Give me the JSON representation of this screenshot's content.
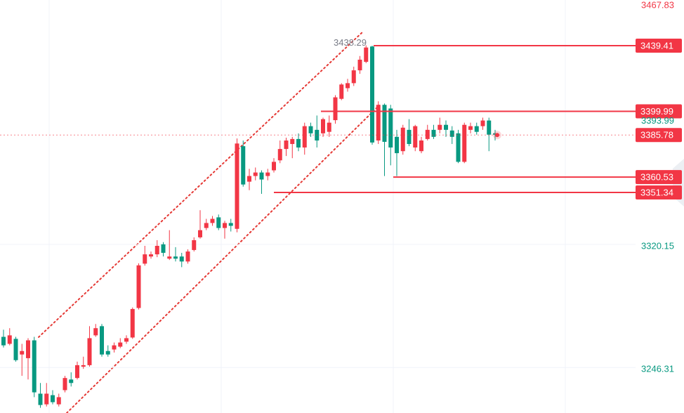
{
  "chart_data": {
    "type": "candlestick",
    "ylim": [
      3219.0,
      3466.8
    ],
    "yticks": [
      3320.15,
      3246.31
    ],
    "ytick_color": "#089981",
    "grid": true,
    "up_color": "#f23645",
    "down_color": "#089981",
    "high_label": 3438.29,
    "last_price": {
      "value": 3385.78,
      "color": "#f23645"
    },
    "price_tags": [
      {
        "value": 3467.83,
        "style": "text",
        "color": "#f23645"
      },
      {
        "value": 3439.41,
        "style": "box",
        "color": "#f23645"
      },
      {
        "value": 3399.99,
        "style": "box",
        "color": "#f23645"
      },
      {
        "value": 3393.99,
        "style": "text",
        "color": "#089981"
      },
      {
        "value": 3360.53,
        "style": "box",
        "color": "#f23645"
      },
      {
        "value": 3351.34,
        "style": "box",
        "color": "#f23645"
      }
    ],
    "ohlc": [
      [
        3264.7,
        3269.0,
        3258.3,
        3259.6
      ],
      [
        3260.5,
        3269.9,
        3259.6,
        3265.6
      ],
      [
        3263.5,
        3264.7,
        3249.8,
        3250.7
      ],
      [
        3254.1,
        3260.5,
        3241.3,
        3256.2
      ],
      [
        3251.9,
        3263.9,
        3239.1,
        3262.6
      ],
      [
        3262.6,
        3264.7,
        3228.5,
        3231.4
      ],
      [
        3230.6,
        3237.0,
        3222.1,
        3223.8
      ],
      [
        3224.2,
        3237.0,
        3222.9,
        3230.6
      ],
      [
        3229.7,
        3232.7,
        3224.2,
        3225.5
      ],
      [
        3224.2,
        3230.6,
        3222.9,
        3228.5
      ],
      [
        3232.7,
        3241.3,
        3231.4,
        3240.0
      ],
      [
        3239.1,
        3243.4,
        3234.9,
        3237.0
      ],
      [
        3240.0,
        3249.8,
        3239.1,
        3247.7
      ],
      [
        3246.8,
        3252.8,
        3245.5,
        3247.7
      ],
      [
        3247.7,
        3271.1,
        3246.8,
        3263.9
      ],
      [
        3265.6,
        3272.4,
        3264.7,
        3269.9
      ],
      [
        3271.1,
        3272.4,
        3252.8,
        3254.1
      ],
      [
        3256.2,
        3259.6,
        3252.8,
        3254.1
      ],
      [
        3257.1,
        3261.3,
        3255.3,
        3259.6
      ],
      [
        3258.8,
        3263.9,
        3257.9,
        3261.3
      ],
      [
        3261.8,
        3265.6,
        3260.5,
        3263.9
      ],
      [
        3264.3,
        3282.3,
        3263.5,
        3281.4
      ],
      [
        3282.0,
        3308.8,
        3281.1,
        3307.6
      ],
      [
        3308.6,
        3319.3,
        3307.4,
        3314.2
      ],
      [
        3312.9,
        3315.9,
        3311.6,
        3314.2
      ],
      [
        3314.2,
        3322.7,
        3312.5,
        3319.3
      ],
      [
        3320.2,
        3321.5,
        3312.9,
        3315.1
      ],
      [
        3311.6,
        3328.7,
        3310.8,
        3312.9
      ],
      [
        3312.9,
        3318.5,
        3309.9,
        3311.6
      ],
      [
        3312.9,
        3315.1,
        3306.5,
        3309.9
      ],
      [
        3309.9,
        3317.2,
        3308.6,
        3315.9
      ],
      [
        3316.8,
        3324.4,
        3315.9,
        3322.7
      ],
      [
        3324.4,
        3340.7,
        3323.6,
        3328.7
      ],
      [
        3330.0,
        3335.5,
        3328.7,
        3333.0
      ],
      [
        3333.0,
        3337.2,
        3331.3,
        3335.5
      ],
      [
        3336.4,
        3338.1,
        3328.7,
        3330.0
      ],
      [
        3330.0,
        3334.3,
        3323.6,
        3333.0
      ],
      [
        3333.0,
        3335.5,
        3327.9,
        3331.3
      ],
      [
        3329.5,
        3383.7,
        3327.4,
        3380.7
      ],
      [
        3379.1,
        3382.5,
        3354.8,
        3356.1
      ],
      [
        3357.8,
        3365.5,
        3352.7,
        3361.2
      ],
      [
        3361.2,
        3366.3,
        3358.6,
        3363.3
      ],
      [
        3363.3,
        3364.6,
        3350.5,
        3359.1
      ],
      [
        3361.2,
        3365.5,
        3358.6,
        3363.3
      ],
      [
        3364.6,
        3371.9,
        3363.3,
        3369.7
      ],
      [
        3370.6,
        3382.5,
        3368.9,
        3377.4
      ],
      [
        3377.4,
        3384.2,
        3373.2,
        3382.5
      ],
      [
        3380.4,
        3384.7,
        3371.9,
        3383.4
      ],
      [
        3383.4,
        3386.8,
        3376.1,
        3378.3
      ],
      [
        3378.3,
        3393.2,
        3374.0,
        3391.1
      ],
      [
        3391.1,
        3393.2,
        3384.7,
        3386.8
      ],
      [
        3388.9,
        3397.5,
        3378.3,
        3382.5
      ],
      [
        3386.8,
        3396.2,
        3384.7,
        3395.3
      ],
      [
        3387.7,
        3397.5,
        3384.7,
        3393.2
      ],
      [
        3394.7,
        3409.7,
        3392.6,
        3408.4
      ],
      [
        3407.5,
        3416.9,
        3406.7,
        3416.1
      ],
      [
        3413.9,
        3419.5,
        3411.8,
        3416.9
      ],
      [
        3416.9,
        3426.8,
        3415.2,
        3424.6
      ],
      [
        3424.6,
        3433.2,
        3422.5,
        3431.0
      ],
      [
        3429.7,
        3439.6,
        3428.9,
        3438.3
      ],
      [
        3438.9,
        3439.4,
        3380.0,
        3381.3
      ],
      [
        3382.5,
        3406.0,
        3380.4,
        3403.9
      ],
      [
        3403.9,
        3404.7,
        3361.2,
        3381.7
      ],
      [
        3401.7,
        3403.9,
        3367.6,
        3378.3
      ],
      [
        3384.7,
        3388.9,
        3361.2,
        3374.9
      ],
      [
        3376.1,
        3391.9,
        3374.0,
        3390.2
      ],
      [
        3388.9,
        3395.3,
        3379.1,
        3380.4
      ],
      [
        3378.3,
        3391.9,
        3376.1,
        3391.1
      ],
      [
        3376.1,
        3384.7,
        3374.9,
        3382.5
      ],
      [
        3383.4,
        3391.9,
        3382.5,
        3388.9
      ],
      [
        3388.9,
        3391.9,
        3383.4,
        3384.7
      ],
      [
        3388.9,
        3396.2,
        3386.8,
        3391.9
      ],
      [
        3391.9,
        3394.5,
        3384.7,
        3388.9
      ],
      [
        3388.5,
        3391.1,
        3380.4,
        3384.7
      ],
      [
        3386.8,
        3388.9,
        3368.9,
        3369.7
      ],
      [
        3369.7,
        3393.2,
        3368.9,
        3391.9
      ],
      [
        3388.9,
        3393.2,
        3386.8,
        3391.1
      ],
      [
        3391.1,
        3393.2,
        3386.0,
        3387.7
      ],
      [
        3391.1,
        3396.2,
        3388.9,
        3394.5
      ],
      [
        3394.5,
        3396.2,
        3376.1,
        3386.0
      ],
      [
        3386.8,
        3388.9,
        3382.5,
        3386.0
      ]
    ]
  }
}
